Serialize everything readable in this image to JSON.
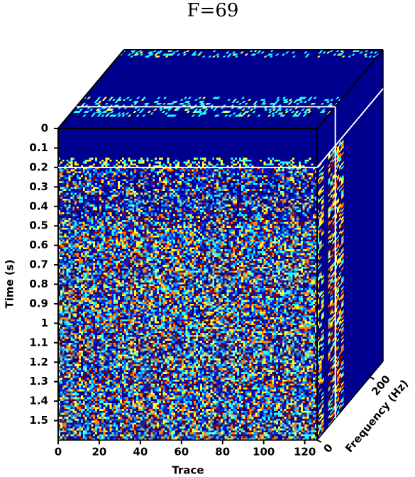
{
  "chart_data": {
    "type": "cube",
    "title": "F=69",
    "xlabel": "Trace",
    "ylabel": "Time (s)",
    "zlabel": "Frequency (Hz)",
    "xlim": [
      0,
      126
    ],
    "xticks": [
      0,
      20,
      40,
      60,
      80,
      100,
      120
    ],
    "ylim": [
      0,
      1.6
    ],
    "yticks": [
      0,
      0.1,
      0.2,
      0.3,
      0.4,
      0.5,
      0.6,
      0.7,
      0.8,
      0.9,
      1,
      1.1,
      1.2,
      1.3,
      1.4,
      1.5
    ],
    "zlim": [
      0,
      250
    ],
    "zticks": [
      0,
      200
    ],
    "time_slice": 0.2,
    "frequency_slice": 69,
    "colormap": [
      "#00008f",
      "#0a1ee0",
      "#0090ff",
      "#20ffff",
      "#ffff30",
      "#ff8000",
      "#8a0000"
    ]
  }
}
